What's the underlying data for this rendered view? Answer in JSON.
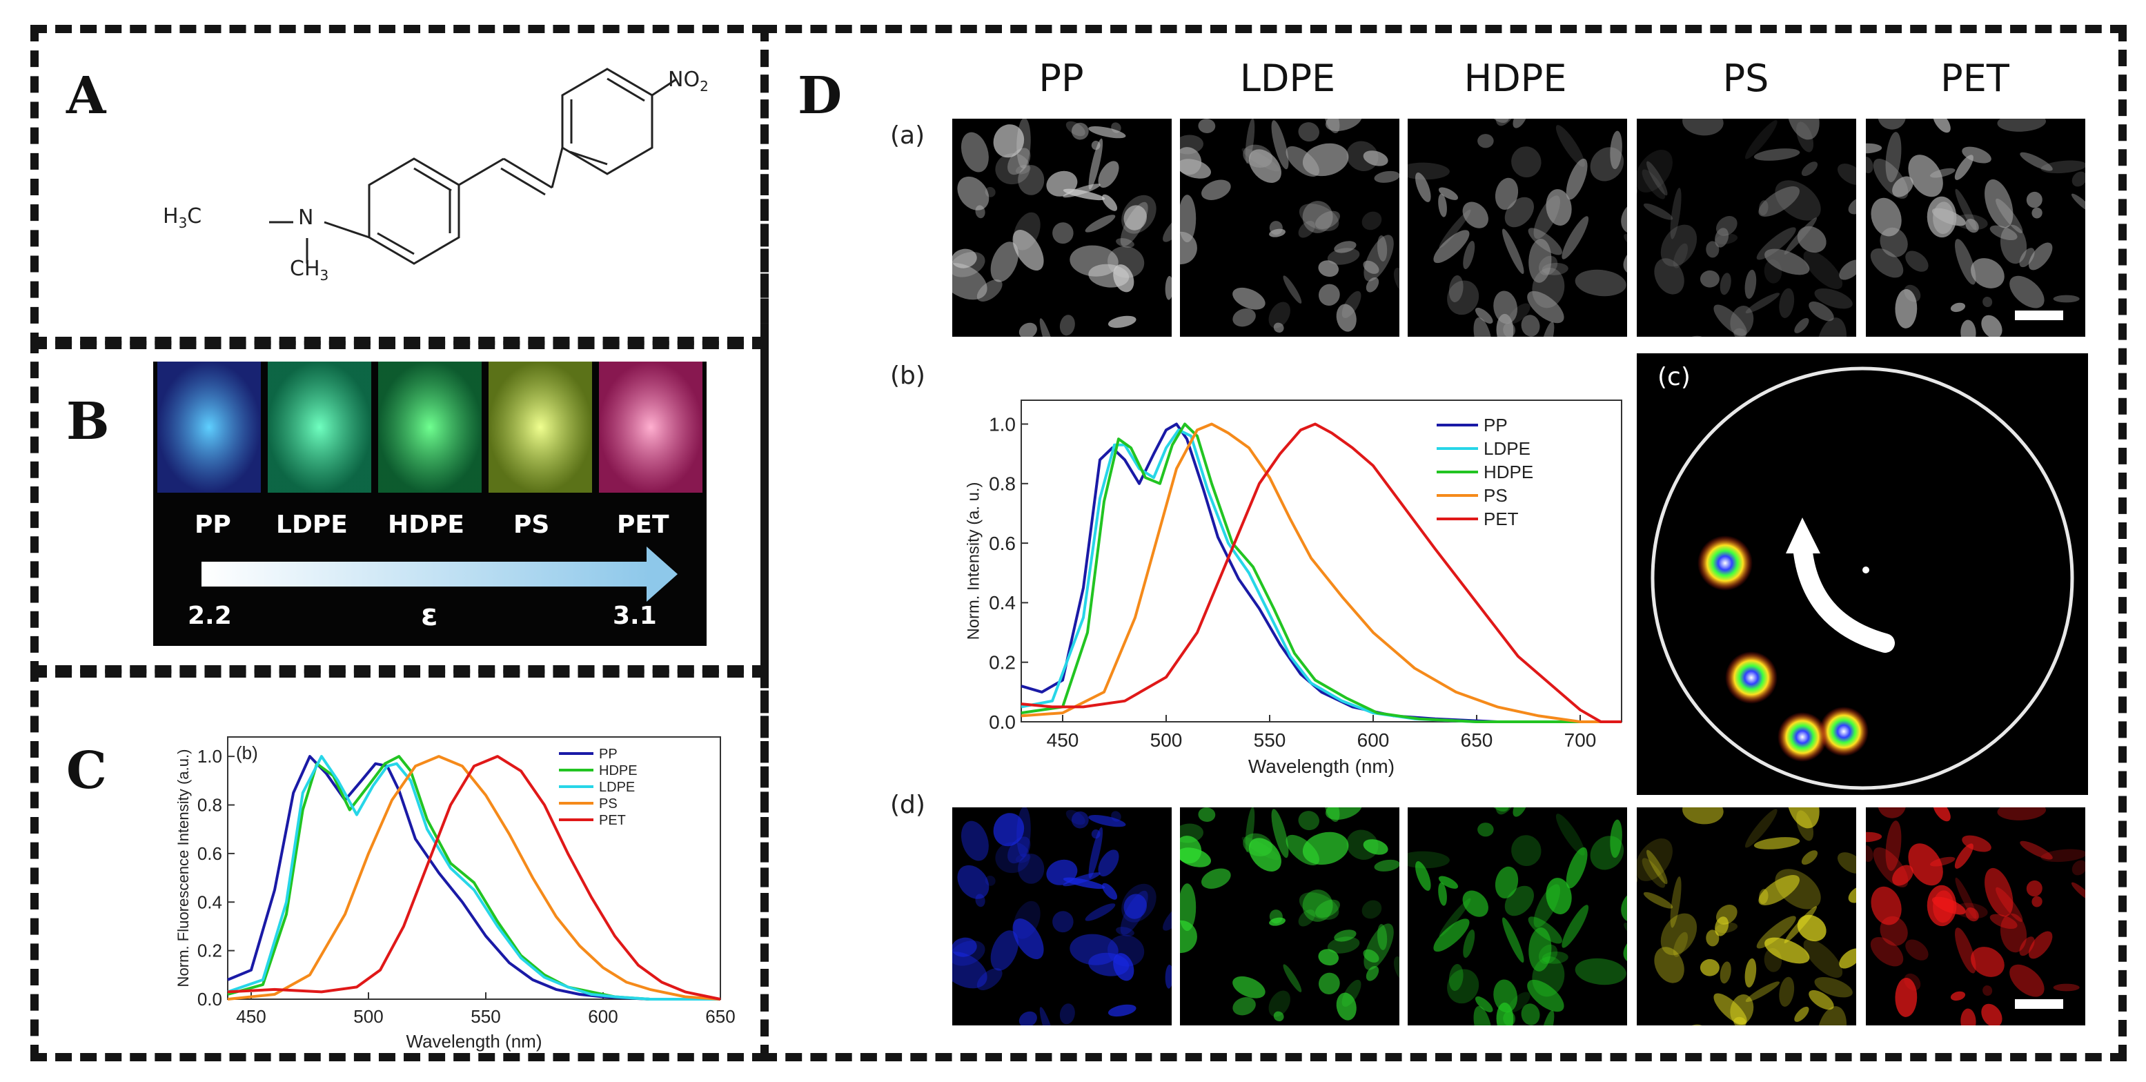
{
  "panels": {
    "A": {
      "letter": "A",
      "molecule": {
        "no2": "NO2",
        "h3c": "H3C",
        "n": "N",
        "ch3": "CH3"
      }
    },
    "B": {
      "letter": "B",
      "labels": [
        "PP",
        "LDPE",
        "HDPE",
        "PS",
        "PET"
      ],
      "eps_symbol": "ε",
      "eps_low": "2.2",
      "eps_high": "3.1"
    },
    "C": {
      "letter": "C",
      "sublabel": "(b)"
    },
    "D": {
      "letter": "D",
      "columns": [
        "PP",
        "LDPE",
        "HDPE",
        "PS",
        "PET"
      ],
      "row_labels": {
        "a": "(a)",
        "b": "(b)",
        "c": "(c)",
        "d": "(d)"
      },
      "channel_colors": [
        "#1020e0",
        "#20d020",
        "#20c020",
        "#e8e020",
        "#f01010"
      ]
    }
  },
  "chart_data": [
    {
      "id": "C",
      "type": "line",
      "title": "",
      "sublabel": "(b)",
      "xlabel": "Wavelength (nm)",
      "ylabel": "Norm. Fluorescence Intensity (a.u.)",
      "xlim": [
        440,
        650
      ],
      "ylim": [
        0,
        1.08
      ],
      "xticks": [
        450,
        500,
        550,
        600,
        650
      ],
      "yticks": [
        0.0,
        0.2,
        0.4,
        0.6,
        0.8,
        1.0
      ],
      "legend_position": "top-right",
      "series": [
        {
          "name": "PP",
          "color": "#1a1aa6",
          "x": [
            440,
            450,
            460,
            468,
            475,
            482,
            490,
            497,
            503,
            508,
            513,
            520,
            530,
            540,
            550,
            560,
            570,
            580,
            590,
            600,
            620,
            640,
            650
          ],
          "y": [
            0.08,
            0.12,
            0.45,
            0.85,
            1.0,
            0.93,
            0.82,
            0.9,
            0.97,
            0.96,
            0.86,
            0.66,
            0.52,
            0.4,
            0.26,
            0.15,
            0.08,
            0.04,
            0.02,
            0.01,
            0.0,
            0.0,
            0.0
          ]
        },
        {
          "name": "HDPE",
          "color": "#22c422",
          "x": [
            440,
            455,
            465,
            472,
            478,
            485,
            492,
            500,
            507,
            513,
            518,
            525,
            535,
            545,
            555,
            565,
            575,
            585,
            595,
            605,
            620,
            640,
            650
          ],
          "y": [
            0.02,
            0.06,
            0.35,
            0.78,
            0.97,
            0.92,
            0.78,
            0.88,
            0.97,
            1.0,
            0.94,
            0.74,
            0.56,
            0.48,
            0.32,
            0.18,
            0.1,
            0.05,
            0.03,
            0.01,
            0.0,
            0.0,
            0.0
          ]
        },
        {
          "name": "LDPE",
          "color": "#27d6e8",
          "x": [
            440,
            455,
            465,
            472,
            480,
            487,
            495,
            502,
            508,
            512,
            518,
            525,
            535,
            545,
            555,
            565,
            575,
            585,
            595,
            605,
            620,
            640,
            650
          ],
          "y": [
            0.03,
            0.08,
            0.4,
            0.85,
            1.0,
            0.9,
            0.76,
            0.88,
            0.96,
            0.97,
            0.9,
            0.7,
            0.54,
            0.45,
            0.3,
            0.17,
            0.09,
            0.05,
            0.02,
            0.01,
            0.0,
            0.0,
            0.0
          ]
        },
        {
          "name": "PS",
          "color": "#f58a1a",
          "x": [
            440,
            460,
            475,
            490,
            500,
            510,
            520,
            530,
            540,
            550,
            560,
            570,
            580,
            590,
            600,
            610,
            620,
            635,
            650
          ],
          "y": [
            0.0,
            0.02,
            0.1,
            0.35,
            0.6,
            0.82,
            0.96,
            1.0,
            0.96,
            0.84,
            0.68,
            0.5,
            0.34,
            0.22,
            0.13,
            0.07,
            0.04,
            0.01,
            0.0
          ]
        },
        {
          "name": "PET",
          "color": "#e01818",
          "x": [
            440,
            460,
            480,
            495,
            505,
            515,
            525,
            535,
            545,
            555,
            565,
            575,
            585,
            595,
            605,
            615,
            625,
            635,
            645,
            650
          ],
          "y": [
            0.03,
            0.04,
            0.03,
            0.05,
            0.12,
            0.3,
            0.55,
            0.8,
            0.96,
            1.0,
            0.94,
            0.8,
            0.6,
            0.42,
            0.26,
            0.14,
            0.07,
            0.03,
            0.01,
            0.0
          ]
        }
      ]
    },
    {
      "id": "D-b",
      "type": "line",
      "title": "",
      "sublabel": "(b)",
      "xlabel": "Wavelength (nm)",
      "ylabel": "Norm. Intensity (a. u.)",
      "xlim": [
        430,
        720
      ],
      "ylim": [
        0,
        1.08
      ],
      "xticks": [
        450,
        500,
        550,
        600,
        650,
        700
      ],
      "yticks": [
        0.0,
        0.2,
        0.4,
        0.6,
        0.8,
        1.0
      ],
      "legend_position": "top-right",
      "series": [
        {
          "name": "PP",
          "color": "#1a1aa6",
          "x": [
            430,
            440,
            450,
            460,
            468,
            474,
            480,
            487,
            494,
            500,
            505,
            510,
            518,
            525,
            535,
            545,
            555,
            565,
            575,
            590,
            610,
            630,
            660,
            700,
            720
          ],
          "y": [
            0.12,
            0.1,
            0.14,
            0.45,
            0.88,
            0.92,
            0.88,
            0.8,
            0.9,
            0.98,
            1.0,
            0.95,
            0.78,
            0.62,
            0.48,
            0.38,
            0.26,
            0.16,
            0.1,
            0.05,
            0.02,
            0.01,
            0.0,
            0.0,
            0.0
          ]
        },
        {
          "name": "LDPE",
          "color": "#27d6e8",
          "x": [
            430,
            445,
            460,
            468,
            475,
            480,
            487,
            494,
            500,
            506,
            512,
            520,
            530,
            540,
            550,
            560,
            570,
            585,
            600,
            620,
            650,
            700,
            720
          ],
          "y": [
            0.05,
            0.07,
            0.35,
            0.75,
            0.93,
            0.93,
            0.85,
            0.82,
            0.92,
            0.98,
            0.96,
            0.78,
            0.6,
            0.5,
            0.36,
            0.22,
            0.13,
            0.07,
            0.03,
            0.01,
            0.0,
            0.0,
            0.0
          ]
        },
        {
          "name": "HDPE",
          "color": "#22c422",
          "x": [
            430,
            450,
            462,
            470,
            477,
            483,
            490,
            497,
            503,
            509,
            515,
            522,
            532,
            542,
            552,
            562,
            572,
            587,
            602,
            622,
            650,
            700,
            720
          ],
          "y": [
            0.03,
            0.05,
            0.3,
            0.74,
            0.95,
            0.92,
            0.82,
            0.8,
            0.93,
            1.0,
            0.96,
            0.8,
            0.6,
            0.52,
            0.38,
            0.23,
            0.14,
            0.08,
            0.03,
            0.01,
            0.0,
            0.0,
            0.0
          ]
        },
        {
          "name": "PS",
          "color": "#f58a1a",
          "x": [
            430,
            450,
            470,
            485,
            495,
            505,
            515,
            522,
            530,
            540,
            550,
            560,
            570,
            585,
            600,
            620,
            640,
            660,
            680,
            700,
            720
          ],
          "y": [
            0.02,
            0.03,
            0.1,
            0.35,
            0.6,
            0.85,
            0.98,
            1.0,
            0.97,
            0.92,
            0.82,
            0.68,
            0.55,
            0.42,
            0.3,
            0.18,
            0.1,
            0.05,
            0.02,
            0.0,
            0.0
          ]
        },
        {
          "name": "PET",
          "color": "#e01818",
          "x": [
            430,
            445,
            460,
            480,
            500,
            515,
            530,
            545,
            555,
            565,
            572,
            580,
            590,
            600,
            615,
            630,
            650,
            670,
            690,
            700,
            710,
            720
          ],
          "y": [
            0.06,
            0.05,
            0.05,
            0.07,
            0.15,
            0.3,
            0.55,
            0.8,
            0.9,
            0.98,
            1.0,
            0.97,
            0.92,
            0.86,
            0.72,
            0.58,
            0.4,
            0.22,
            0.1,
            0.04,
            0.0,
            0.0
          ]
        }
      ]
    }
  ]
}
